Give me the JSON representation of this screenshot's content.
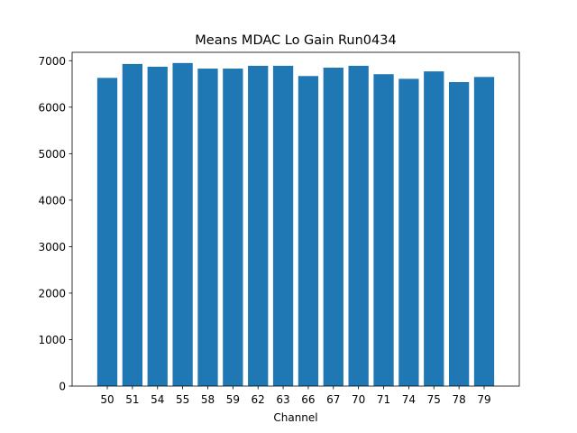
{
  "chart_data": {
    "type": "bar",
    "title": "Means MDAC Lo Gain Run0434",
    "xlabel": "Channel",
    "ylabel": "",
    "categories": [
      "50",
      "51",
      "54",
      "55",
      "58",
      "59",
      "62",
      "63",
      "66",
      "67",
      "70",
      "71",
      "74",
      "75",
      "78",
      "79"
    ],
    "values": [
      6630,
      6930,
      6870,
      6950,
      6830,
      6830,
      6890,
      6890,
      6670,
      6850,
      6890,
      6710,
      6610,
      6770,
      6540,
      6650
    ],
    "ylim": [
      0,
      7180
    ],
    "yticks": [
      0,
      1000,
      2000,
      3000,
      4000,
      5000,
      6000,
      7000
    ],
    "grid": false,
    "bar_color": "#1f77b4"
  }
}
